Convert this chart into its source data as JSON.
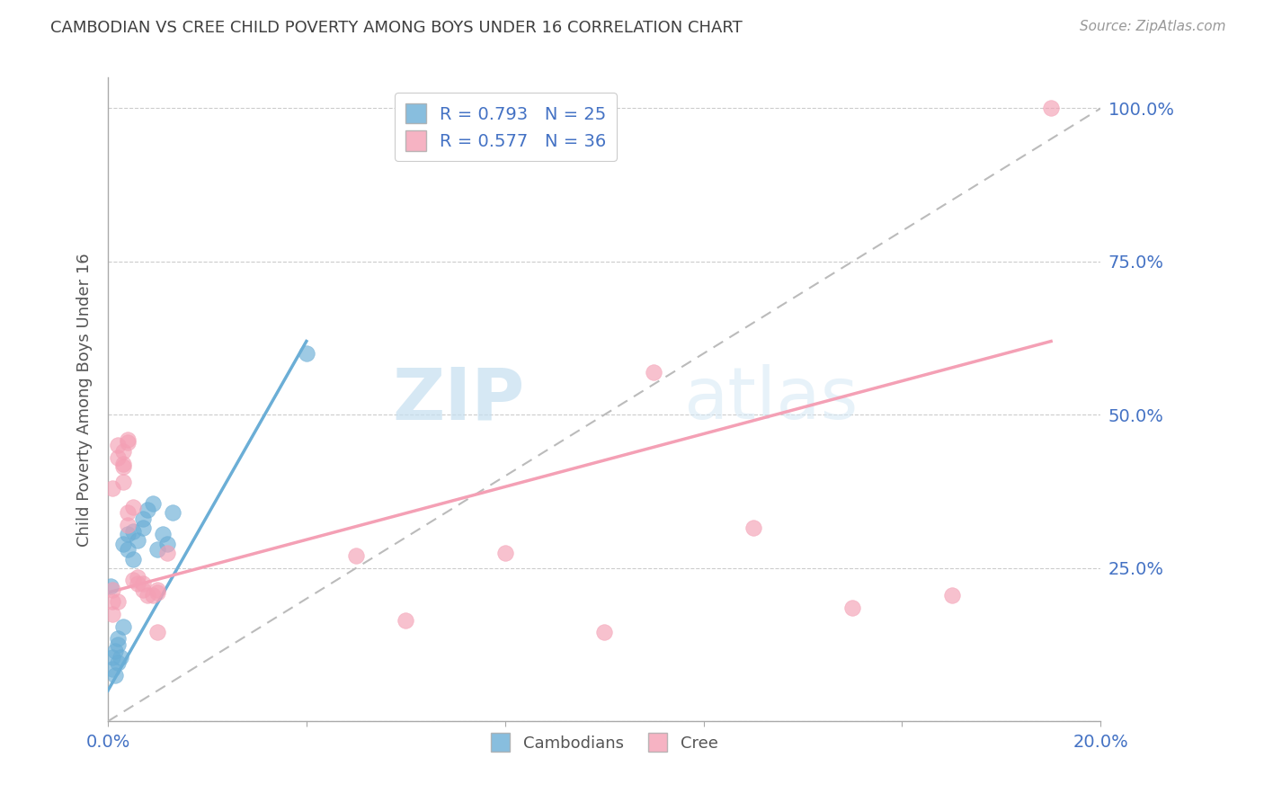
{
  "title": "CAMBODIAN VS CREE CHILD POVERTY AMONG BOYS UNDER 16 CORRELATION CHART",
  "source": "Source: ZipAtlas.com",
  "ylabel": "Child Poverty Among Boys Under 16",
  "xlim": [
    0.0,
    0.2
  ],
  "ylim": [
    0.0,
    1.05
  ],
  "yticks": [
    0.0,
    0.25,
    0.5,
    0.75,
    1.0
  ],
  "ytick_labels": [
    "",
    "25.0%",
    "50.0%",
    "75.0%",
    "100.0%"
  ],
  "xticks": [
    0.0,
    0.04,
    0.08,
    0.12,
    0.16,
    0.2
  ],
  "xtick_labels": [
    "0.0%",
    "",
    "",
    "",
    "",
    "20.0%"
  ],
  "cambodian_color": "#6baed6",
  "cree_color": "#f4a0b5",
  "cambodian_R": 0.793,
  "cambodian_N": 25,
  "cree_R": 0.577,
  "cree_N": 36,
  "background_color": "#ffffff",
  "grid_color": "#cccccc",
  "axis_label_color": "#4472c4",
  "title_color": "#404040",
  "watermark_zip": "ZIP",
  "watermark_atlas": "atlas",
  "cambodian_points": [
    [
      0.001,
      0.105
    ],
    [
      0.001,
      0.085
    ],
    [
      0.0015,
      0.115
    ],
    [
      0.0015,
      0.075
    ],
    [
      0.002,
      0.125
    ],
    [
      0.002,
      0.095
    ],
    [
      0.002,
      0.135
    ],
    [
      0.0025,
      0.105
    ],
    [
      0.003,
      0.155
    ],
    [
      0.003,
      0.29
    ],
    [
      0.004,
      0.305
    ],
    [
      0.004,
      0.28
    ],
    [
      0.005,
      0.31
    ],
    [
      0.005,
      0.265
    ],
    [
      0.006,
      0.295
    ],
    [
      0.007,
      0.315
    ],
    [
      0.007,
      0.33
    ],
    [
      0.008,
      0.345
    ],
    [
      0.009,
      0.355
    ],
    [
      0.01,
      0.28
    ],
    [
      0.011,
      0.305
    ],
    [
      0.012,
      0.29
    ],
    [
      0.013,
      0.34
    ],
    [
      0.04,
      0.6
    ],
    [
      0.0005,
      0.22
    ]
  ],
  "cree_points": [
    [
      0.001,
      0.38
    ],
    [
      0.001,
      0.195
    ],
    [
      0.001,
      0.175
    ],
    [
      0.001,
      0.215
    ],
    [
      0.002,
      0.195
    ],
    [
      0.002,
      0.43
    ],
    [
      0.002,
      0.45
    ],
    [
      0.003,
      0.42
    ],
    [
      0.003,
      0.44
    ],
    [
      0.003,
      0.39
    ],
    [
      0.003,
      0.415
    ],
    [
      0.004,
      0.32
    ],
    [
      0.004,
      0.34
    ],
    [
      0.004,
      0.455
    ],
    [
      0.004,
      0.46
    ],
    [
      0.005,
      0.35
    ],
    [
      0.005,
      0.23
    ],
    [
      0.006,
      0.235
    ],
    [
      0.006,
      0.225
    ],
    [
      0.007,
      0.215
    ],
    [
      0.007,
      0.225
    ],
    [
      0.008,
      0.205
    ],
    [
      0.009,
      0.205
    ],
    [
      0.01,
      0.21
    ],
    [
      0.01,
      0.215
    ],
    [
      0.01,
      0.145
    ],
    [
      0.012,
      0.275
    ],
    [
      0.05,
      0.27
    ],
    [
      0.06,
      0.165
    ],
    [
      0.08,
      0.275
    ],
    [
      0.1,
      0.145
    ],
    [
      0.11,
      0.57
    ],
    [
      0.13,
      0.315
    ],
    [
      0.15,
      0.185
    ],
    [
      0.17,
      0.205
    ],
    [
      0.19,
      1.0
    ]
  ],
  "cam_line": [
    [
      0.0,
      0.05
    ],
    [
      0.04,
      0.62
    ]
  ],
  "cree_line": [
    [
      0.0,
      0.21
    ],
    [
      0.19,
      0.62
    ]
  ]
}
